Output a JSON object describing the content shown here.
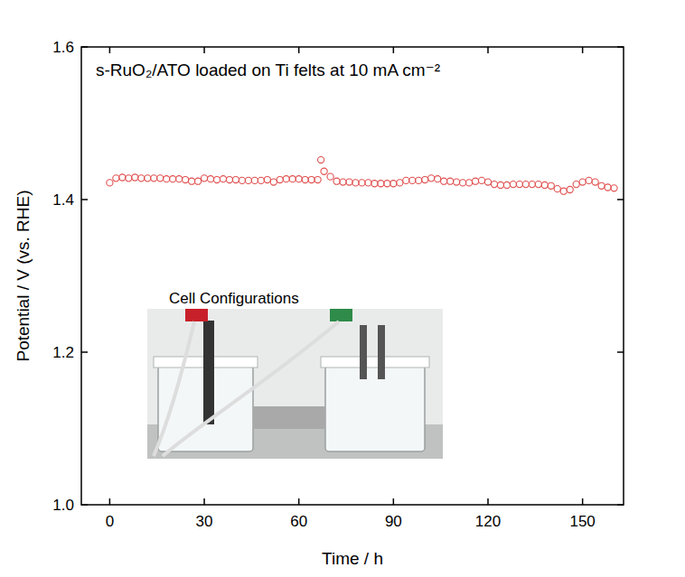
{
  "chart_data": {
    "type": "scatter",
    "title": "s-RuO₂/ATO loaded on Ti felts at 10 mA cm⁻²",
    "x_label": "Time / h",
    "y_label": "Potential / V (vs. RHE)",
    "inset_label": "Cell Configurations",
    "xlim": [
      -9,
      163
    ],
    "xticks": [
      0,
      30,
      60,
      90,
      120,
      150
    ],
    "ylim": [
      1.0,
      1.6
    ],
    "yticks": [
      {
        "value": 1.0,
        "label": "1.0"
      },
      {
        "value": 1.2,
        "label": "1.2"
      },
      {
        "value": 1.4,
        "label": "1.4"
      },
      {
        "value": 1.6,
        "label": "1.6"
      }
    ],
    "grid": false,
    "series": [
      {
        "name": "s-RuO₂/ATO",
        "color": "#e0504f",
        "marker": "circle-open",
        "x": [
          0,
          2,
          4,
          6,
          8,
          10,
          12,
          14,
          16,
          18,
          20,
          22,
          24,
          26,
          28,
          30,
          32,
          34,
          36,
          38,
          40,
          42,
          44,
          46,
          48,
          50,
          52,
          54,
          56,
          58,
          60,
          62,
          64,
          66,
          67,
          68,
          70,
          72,
          74,
          76,
          78,
          80,
          82,
          84,
          86,
          88,
          90,
          92,
          94,
          96,
          98,
          100,
          102,
          104,
          106,
          108,
          110,
          112,
          114,
          116,
          118,
          120,
          122,
          124,
          126,
          128,
          130,
          132,
          134,
          136,
          138,
          140,
          142,
          144,
          146,
          148,
          150,
          152,
          154,
          156,
          158,
          160
        ],
        "values": [
          1.422,
          1.428,
          1.429,
          1.428,
          1.429,
          1.428,
          1.428,
          1.428,
          1.428,
          1.427,
          1.427,
          1.427,
          1.426,
          1.424,
          1.424,
          1.428,
          1.427,
          1.426,
          1.427,
          1.426,
          1.426,
          1.425,
          1.425,
          1.425,
          1.425,
          1.426,
          1.423,
          1.426,
          1.427,
          1.427,
          1.427,
          1.426,
          1.426,
          1.426,
          1.452,
          1.437,
          1.43,
          1.424,
          1.423,
          1.423,
          1.422,
          1.422,
          1.422,
          1.421,
          1.421,
          1.421,
          1.421,
          1.422,
          1.425,
          1.425,
          1.425,
          1.426,
          1.428,
          1.427,
          1.424,
          1.424,
          1.423,
          1.422,
          1.422,
          1.424,
          1.425,
          1.423,
          1.42,
          1.419,
          1.419,
          1.42,
          1.42,
          1.42,
          1.42,
          1.42,
          1.419,
          1.418,
          1.414,
          1.411,
          1.413,
          1.42,
          1.423,
          1.425,
          1.423,
          1.418,
          1.416,
          1.415
        ]
      }
    ]
  }
}
